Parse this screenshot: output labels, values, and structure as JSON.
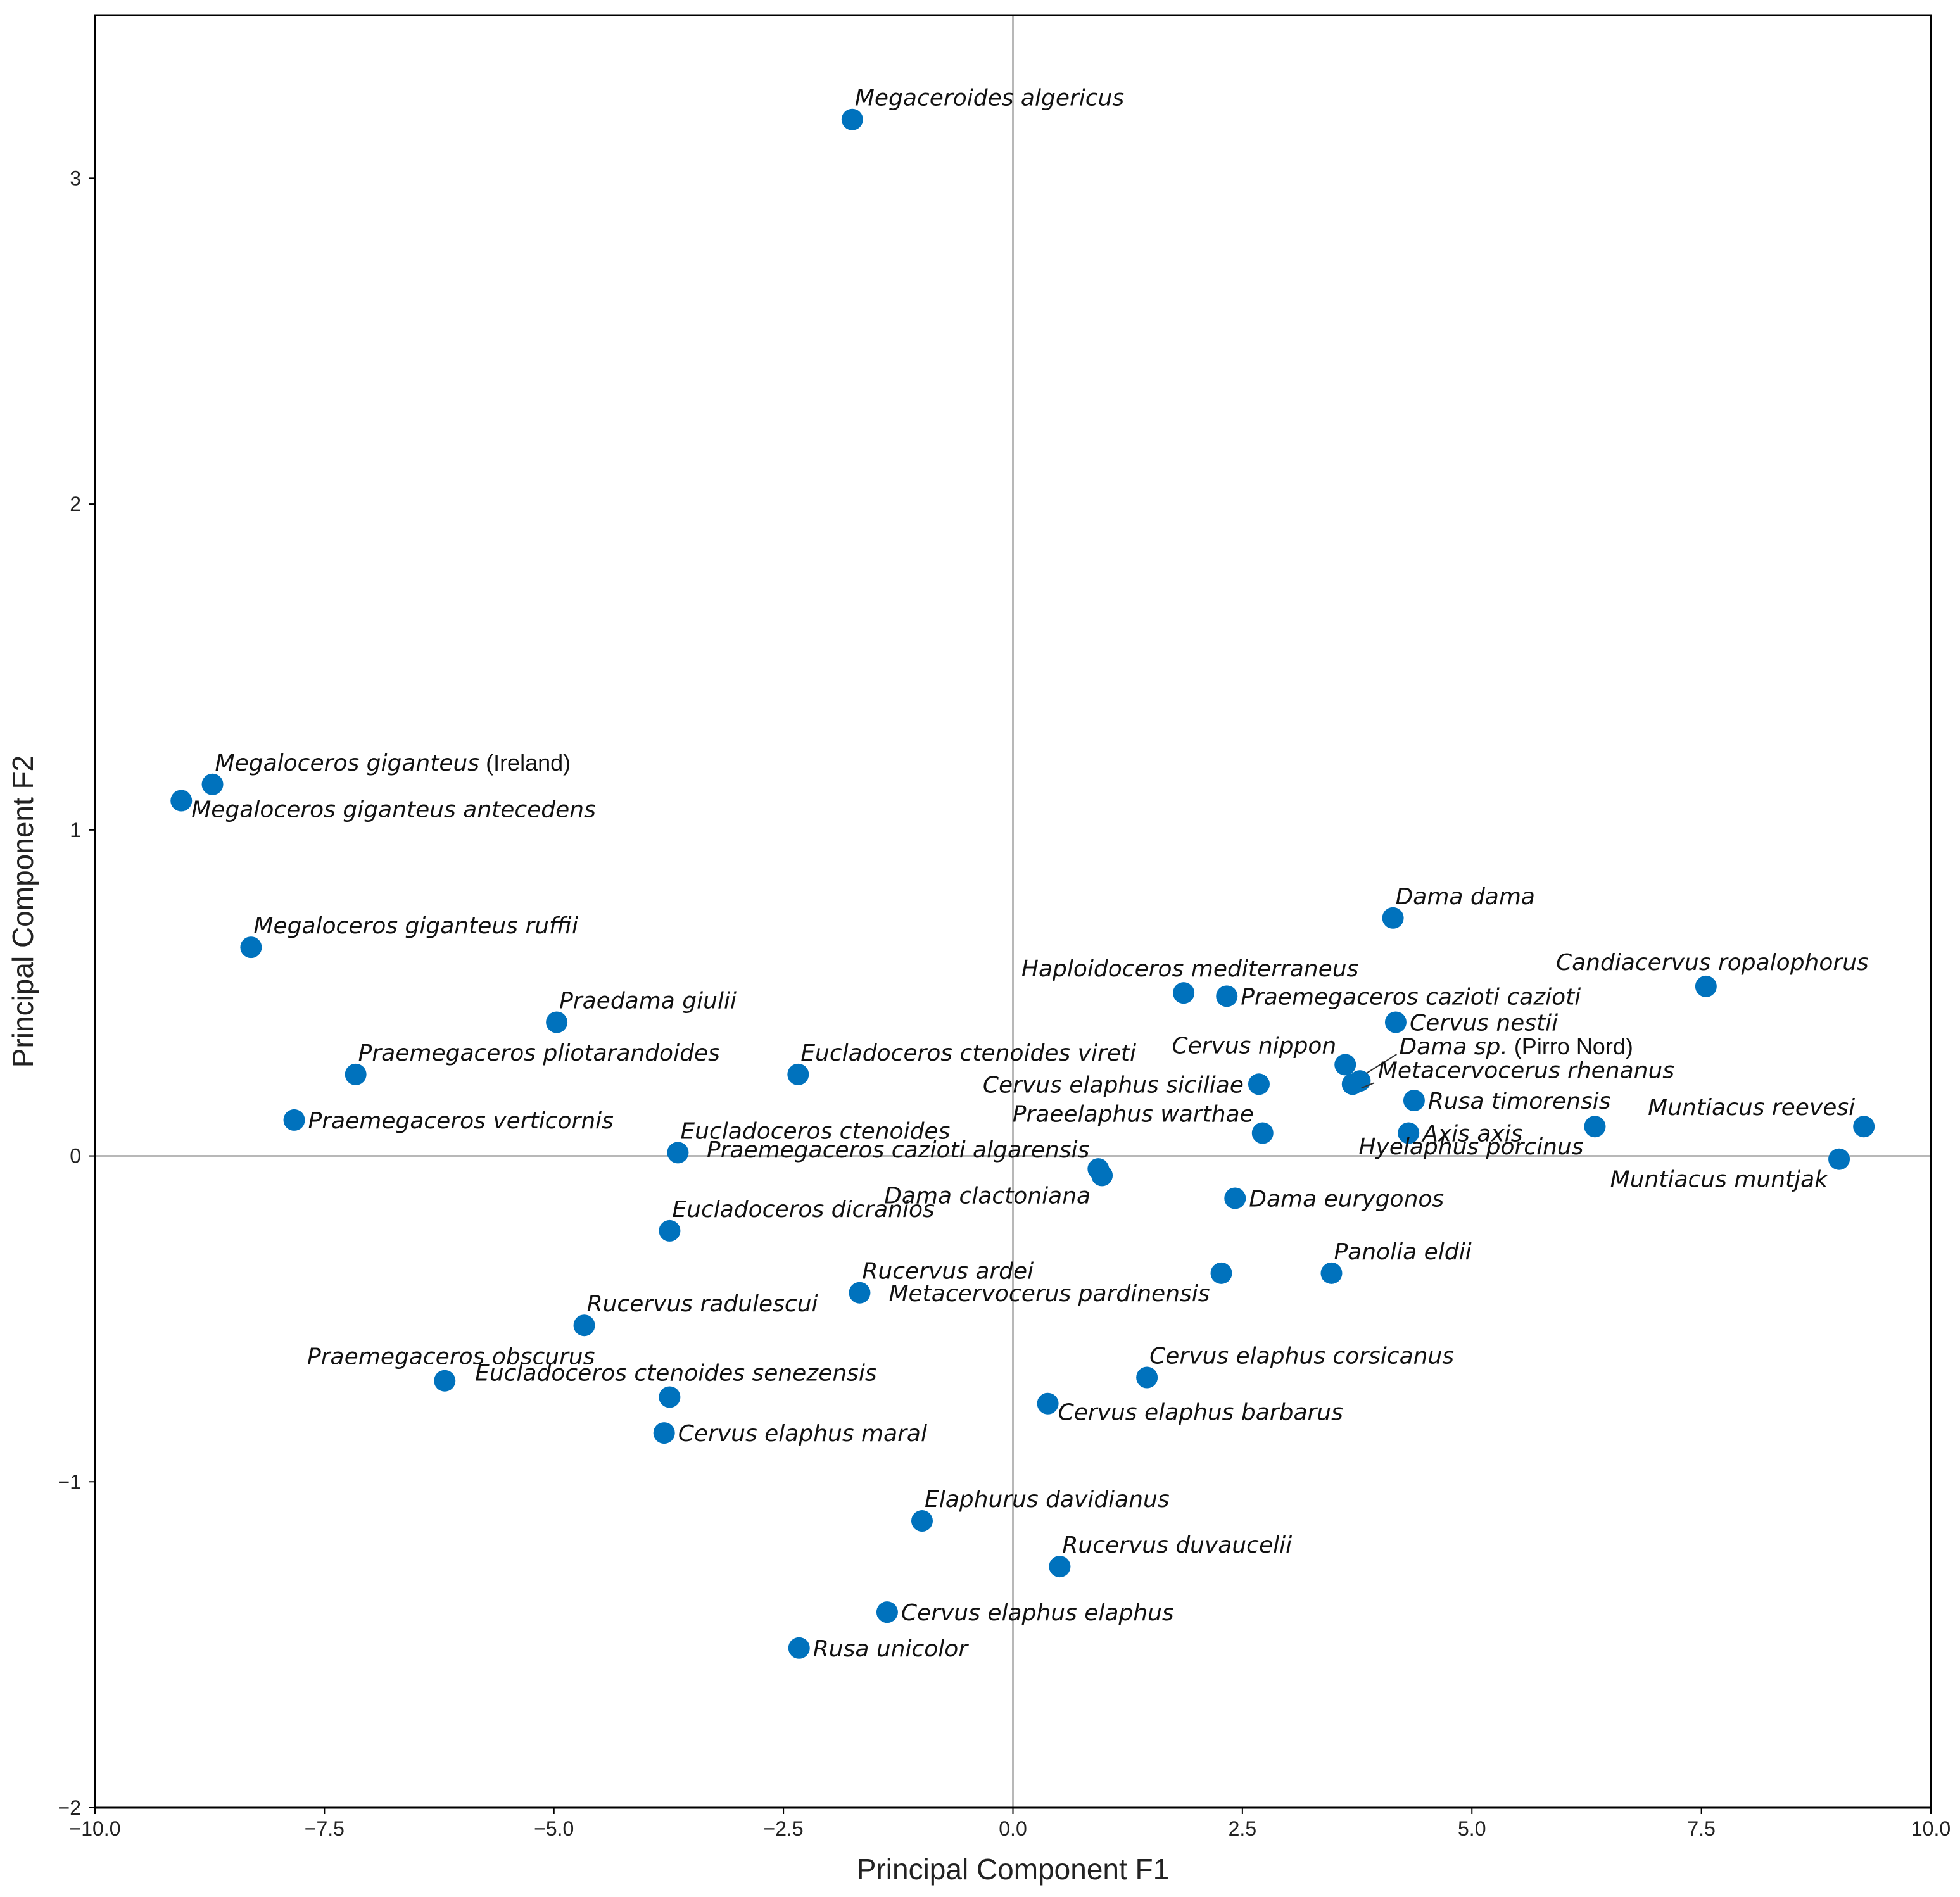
{
  "chart_data": {
    "type": "scatter",
    "title": "",
    "xlabel": "Principal Component F1",
    "ylabel": "Principal Component F2",
    "xlim": [
      -10,
      10
    ],
    "ylim": [
      -2,
      3.5
    ],
    "xticks": [
      -10,
      -7.5,
      -5,
      -2.5,
      0,
      2.5,
      5,
      7.5,
      10
    ],
    "xtick_labels": [
      "−10.0",
      "−7.5",
      "−5.0",
      "−2.5",
      "0.0",
      "2.5",
      "5.0",
      "7.5",
      "10.0"
    ],
    "yticks": [
      -2,
      -1,
      0,
      1,
      2,
      3
    ],
    "ytick_labels": [
      "−2",
      "−1",
      "0",
      "1",
      "2",
      "3"
    ],
    "reference_lines": {
      "x": 0,
      "y": 0
    },
    "marker_color": "#0072BD",
    "points": [
      {
        "label": "Megaceroides algericus",
        "x": -1.75,
        "y": 3.18,
        "pos": "ur"
      },
      {
        "label": "Megaloceros giganteus",
        "note": " (Ireland)",
        "x": -8.72,
        "y": 1.14,
        "pos": "ur"
      },
      {
        "label": "Megaloceros giganteus antecedens",
        "x": -9.06,
        "y": 1.09,
        "pos": "br"
      },
      {
        "label": "Megaloceros giganteus ruffii",
        "x": -8.3,
        "y": 0.64,
        "pos": "ur"
      },
      {
        "label": "Praedama giulii",
        "x": -4.97,
        "y": 0.41,
        "pos": "ur"
      },
      {
        "label": "Praemegaceros pliotarandoides",
        "x": -7.16,
        "y": 0.25,
        "pos": "ur"
      },
      {
        "label": "Praemegaceros verticornis",
        "x": -7.83,
        "y": 0.11,
        "pos": "r"
      },
      {
        "label": "Eucladoceros ctenoides vireti",
        "x": -2.34,
        "y": 0.25,
        "pos": "ur"
      },
      {
        "label": "Eucladoceros ctenoides",
        "x": -3.65,
        "y": 0.01,
        "pos": "ur"
      },
      {
        "label": "Eucladoceros dicranios",
        "x": -3.74,
        "y": -0.23,
        "pos": "ur"
      },
      {
        "label": "Rucervus ardei",
        "x": -1.67,
        "y": -0.42,
        "pos": "ur"
      },
      {
        "label": "Rucervus radulescui",
        "x": -4.67,
        "y": -0.52,
        "pos": "ur"
      },
      {
        "label": "Praemegaceros obscurus",
        "x": -6.19,
        "y": -0.69,
        "pos": "u"
      },
      {
        "label": "Eucladoceros ctenoides senezensis",
        "x": -3.74,
        "y": -0.74,
        "pos": "u"
      },
      {
        "label": "Cervus elaphus maral",
        "x": -3.8,
        "y": -0.85,
        "pos": "r"
      },
      {
        "label": "Elaphurus davidianus",
        "x": -0.99,
        "y": -1.12,
        "pos": "ur"
      },
      {
        "label": "Rucervus duvaucelii",
        "x": 0.51,
        "y": -1.26,
        "pos": "ur"
      },
      {
        "label": "Cervus elaphus elaphus",
        "x": -1.37,
        "y": -1.4,
        "pos": "r"
      },
      {
        "label": "Rusa unicolor",
        "x": -2.33,
        "y": -1.51,
        "pos": "r"
      },
      {
        "label": "Cervus elaphus barbarus",
        "x": 0.38,
        "y": -0.76,
        "pos": "br"
      },
      {
        "label": "Cervus elaphus corsicanus",
        "x": 1.46,
        "y": -0.68,
        "pos": "ur"
      },
      {
        "label": "Metacervocerus pardinensis",
        "x": 2.27,
        "y": -0.36,
        "pos": "bl"
      },
      {
        "label": "Panolia eldii",
        "x": 3.47,
        "y": -0.36,
        "pos": "ur"
      },
      {
        "label": "Dama eurygonos",
        "x": 2.42,
        "y": -0.13,
        "pos": "r"
      },
      {
        "label": "Dama clactoniana",
        "x": 0.97,
        "y": -0.06,
        "pos": "bl"
      },
      {
        "label": "Praemegaceros cazioti algarensis",
        "x": 0.93,
        "y": -0.04,
        "pos": "ul"
      },
      {
        "label": "Praeelaphus warthae",
        "x": 2.72,
        "y": 0.07,
        "pos": "ul"
      },
      {
        "label": "Cervus elaphus siciliae",
        "x": 2.68,
        "y": 0.22,
        "pos": "l"
      },
      {
        "label": "Haploidoceros mediterraneus",
        "x": 1.86,
        "y": 0.5,
        "pos": "u"
      },
      {
        "label": "Praemegaceros cazioti cazioti",
        "x": 2.33,
        "y": 0.49,
        "pos": "r"
      },
      {
        "label": "Dama dama",
        "x": 4.14,
        "y": 0.73,
        "pos": "ur"
      },
      {
        "label": "Cervus nippon",
        "x": 3.62,
        "y": 0.28,
        "pos": "ul"
      },
      {
        "label": "Cervus nestii",
        "x": 4.17,
        "y": 0.41,
        "pos": "r"
      },
      {
        "label": "Dama sp.",
        "note": " (Pirro Nord)",
        "x": 3.78,
        "y": 0.23,
        "pos": "leader-up"
      },
      {
        "label": "Metacervocerus rhenanus",
        "x": 3.7,
        "y": 0.22,
        "pos": "leader-right"
      },
      {
        "label": "Rusa timorensis",
        "x": 4.37,
        "y": 0.17,
        "pos": "r"
      },
      {
        "label": "Axis axis",
        "x": 4.31,
        "y": 0.07,
        "pos": "r"
      },
      {
        "label": "Candiacervus ropalophorus",
        "x": 7.55,
        "y": 0.52,
        "pos": "u"
      },
      {
        "label": "Hyelaphus porcinus",
        "x": 6.34,
        "y": 0.09,
        "pos": "bl"
      },
      {
        "label": "Muntiacus reevesi",
        "x": 9.27,
        "y": 0.09,
        "pos": "ul"
      },
      {
        "label": "Muntiacus muntjak",
        "x": 9.0,
        "y": -0.01,
        "pos": "bl"
      }
    ]
  }
}
